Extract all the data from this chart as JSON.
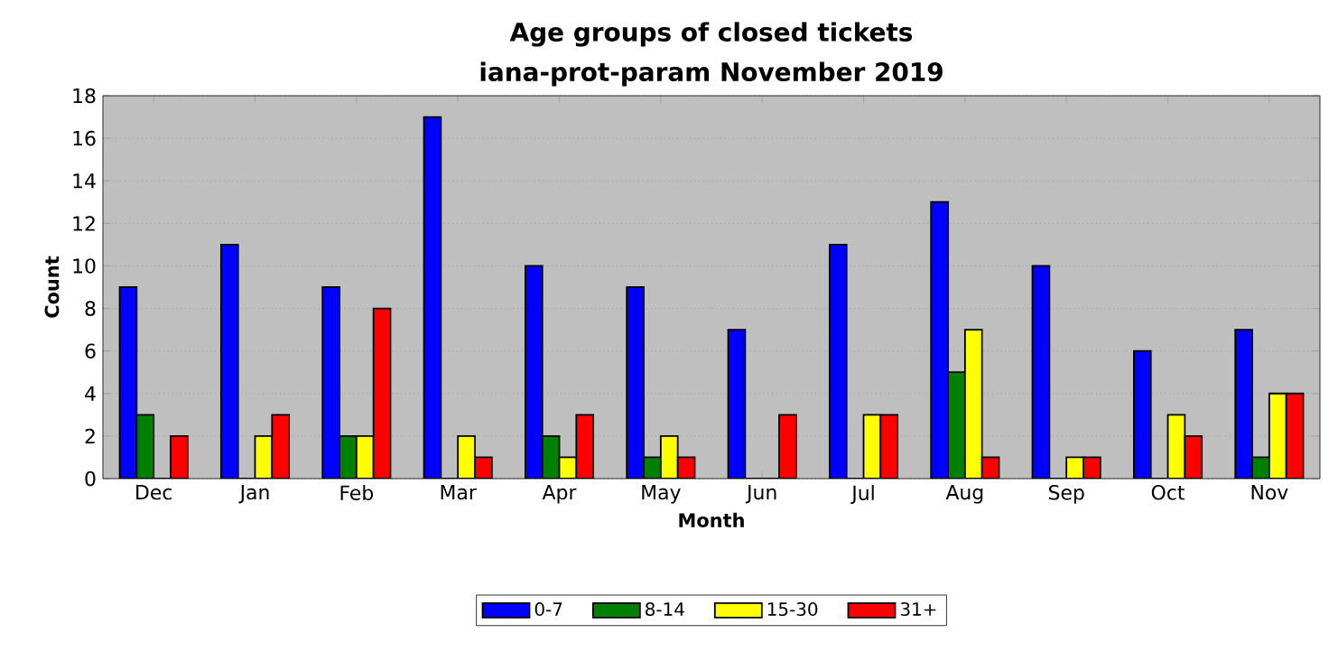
{
  "chart_data": {
    "type": "bar",
    "title": "Age groups of closed tickets",
    "subtitle": "iana-prot-param November 2019",
    "xlabel": "Month",
    "ylabel": "Count",
    "categories": [
      "Dec",
      "Jan",
      "Feb",
      "Mar",
      "Apr",
      "May",
      "Jun",
      "Jul",
      "Aug",
      "Sep",
      "Oct",
      "Nov"
    ],
    "series": [
      {
        "name": "0-7",
        "color": "#0000ff",
        "values": [
          9,
          11,
          9,
          17,
          10,
          9,
          7,
          11,
          13,
          10,
          6,
          7
        ]
      },
      {
        "name": "8-14",
        "color": "#008000",
        "values": [
          3,
          0,
          2,
          0,
          2,
          1,
          0,
          0,
          5,
          0,
          0,
          1
        ]
      },
      {
        "name": "15-30",
        "color": "#ffff00",
        "values": [
          0,
          2,
          2,
          2,
          1,
          2,
          0,
          3,
          7,
          1,
          3,
          4
        ]
      },
      {
        "name": "31+",
        "color": "#ff0000",
        "values": [
          2,
          3,
          8,
          1,
          3,
          1,
          3,
          3,
          1,
          1,
          2,
          4
        ]
      }
    ],
    "ylim": [
      0,
      18
    ],
    "yticks": [
      0,
      2,
      4,
      6,
      8,
      10,
      12,
      14,
      16,
      18
    ],
    "grid": "y",
    "legend": "bottom"
  }
}
